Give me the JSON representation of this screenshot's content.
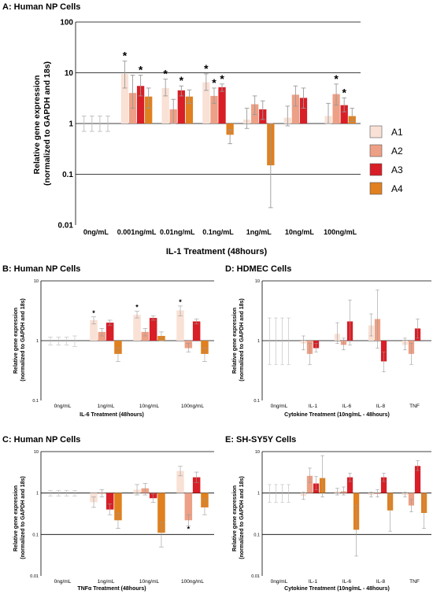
{
  "legend": [
    {
      "name": "A1",
      "color": "#f9e1d6"
    },
    {
      "name": "A2",
      "color": "#eda085"
    },
    {
      "name": "A3",
      "color": "#d81e26"
    },
    {
      "name": "A4",
      "color": "#e0801f"
    }
  ],
  "panels": {
    "A": {
      "title": "A: Human NP Cells",
      "xlabel": "IL-1 Treatment (48hours)",
      "ylabel_line1": "Relative gene expression",
      "ylabel_line2": "(normalized to GAPDH and 18s)"
    },
    "B": {
      "title": "B: Human NP Cells",
      "xlabel": "IL-6 Treatment (48hours)",
      "ylabel_line1": "Relative gene expression",
      "ylabel_line2": "(normalized to GAPDH and 18s)"
    },
    "C": {
      "title": "C: Human NP Cells",
      "xlabel": "TNFα Treatment (48hours)",
      "ylabel_line1": "Relative gene expression",
      "ylabel_line2": "(normalized to GAPDH and 18s)"
    },
    "D": {
      "title": "D: HDMEC Cells",
      "xlabel": "Cytokine Treatment (10ng/mL - 48hours)",
      "ylabel_line1": "Relative gene expression",
      "ylabel_line2": "(normalized to GAPDH and 18s)"
    },
    "E": {
      "title": "E: SH-SY5Y Cells",
      "xlabel": "Cytokine Treatment (10ng/mL - 48hours)",
      "ylabel_line1": "Relative gene expression",
      "ylabel_line2": "(normalized to GAPDH and 18s)"
    }
  },
  "chart_data": [
    {
      "id": "A",
      "type": "bar",
      "scale": "log",
      "ylim": [
        0.01,
        100
      ],
      "yticks": [
        "0.01",
        "0.1",
        "1",
        "10",
        "100"
      ],
      "categories": [
        "0ng/mL",
        "0.001ng/mL",
        "0.01ng/mL",
        "0.1ng/mL",
        "1ng/mL",
        "10ng/mL",
        "100ng/mL"
      ],
      "series": [
        {
          "name": "A1",
          "values": [
            1.0,
            9.5,
            5.0,
            6.5,
            1.2,
            1.3,
            1.4
          ],
          "err_low": [
            0.7,
            5.0,
            3.5,
            4.5,
            0.8,
            0.9,
            1.0
          ],
          "err_high": [
            1.4,
            17.0,
            7.5,
            9.5,
            2.0,
            2.2,
            2.5
          ],
          "sig": [
            false,
            true,
            true,
            true,
            false,
            false,
            false
          ]
        },
        {
          "name": "A2",
          "values": [
            1.0,
            4.0,
            1.9,
            3.5,
            2.4,
            3.7,
            3.8
          ],
          "err_low": [
            0.7,
            2.0,
            1.0,
            2.5,
            1.5,
            2.2,
            2.3
          ],
          "err_high": [
            1.4,
            9.0,
            3.0,
            5.0,
            3.5,
            5.5,
            6.0
          ],
          "sig": [
            false,
            false,
            false,
            true,
            false,
            false,
            true
          ]
        },
        {
          "name": "A3",
          "values": [
            1.0,
            5.5,
            4.5,
            5.2,
            1.9,
            3.2,
            2.3
          ],
          "err_low": [
            0.7,
            3.5,
            3.5,
            4.3,
            1.2,
            2.0,
            1.7
          ],
          "err_high": [
            1.4,
            9.0,
            5.5,
            6.0,
            2.8,
            5.0,
            3.2
          ],
          "sig": [
            false,
            true,
            true,
            true,
            false,
            false,
            true
          ]
        },
        {
          "name": "A4",
          "values": [
            1.0,
            3.4,
            3.4,
            0.6,
            0.15,
            null,
            1.4
          ],
          "err_low": [
            0.7,
            2.0,
            2.5,
            0.4,
            0.022,
            null,
            1.1
          ],
          "err_high": [
            1.4,
            5.0,
            4.6,
            0.75,
            1.0,
            null,
            2.0
          ],
          "sig": [
            false,
            false,
            false,
            false,
            false,
            false,
            false
          ]
        }
      ]
    },
    {
      "id": "B",
      "type": "bar",
      "scale": "log",
      "ylim": [
        0.1,
        10
      ],
      "yticks": [
        "0.1",
        "1",
        "10"
      ],
      "categories": [
        "0ng/mL",
        "1ng/mL",
        "10ng/mL",
        "100ng/mL"
      ],
      "series": [
        {
          "name": "A1",
          "values": [
            1.0,
            2.2,
            2.7,
            3.2
          ],
          "err_low": [
            0.85,
            1.9,
            2.4,
            2.6
          ],
          "err_high": [
            1.15,
            2.5,
            3.1,
            3.8
          ],
          "sig": [
            false,
            true,
            true,
            true
          ]
        },
        {
          "name": "A2",
          "values": [
            1.0,
            1.4,
            1.4,
            0.75
          ],
          "err_low": [
            0.85,
            1.2,
            1.2,
            0.65
          ],
          "err_high": [
            1.15,
            1.6,
            1.6,
            0.9
          ],
          "sig": [
            false,
            false,
            false,
            false
          ]
        },
        {
          "name": "A3",
          "values": [
            1.0,
            2.0,
            2.4,
            2.1
          ],
          "err_low": [
            0.85,
            1.8,
            2.2,
            1.9
          ],
          "err_high": [
            1.15,
            2.2,
            2.6,
            2.3
          ],
          "sig": [
            false,
            false,
            false,
            false
          ]
        },
        {
          "name": "A4",
          "values": [
            1.0,
            0.6,
            1.2,
            0.6
          ],
          "err_low": [
            0.8,
            0.45,
            1.0,
            0.45
          ],
          "err_high": [
            1.2,
            0.75,
            1.4,
            0.75
          ],
          "sig": [
            false,
            false,
            false,
            false
          ]
        }
      ]
    },
    {
      "id": "C",
      "type": "bar",
      "scale": "log",
      "ylim": [
        0.01,
        10
      ],
      "yticks": [
        "0.01",
        "0.1",
        "1",
        "10"
      ],
      "categories": [
        "0ng/mL",
        "1ng/mL",
        "10ng/mL",
        "100ng/mL"
      ],
      "series": [
        {
          "name": "A1",
          "values": [
            1.0,
            0.6,
            1.2,
            3.4
          ],
          "err_low": [
            0.85,
            0.45,
            0.9,
            2.6
          ],
          "err_high": [
            1.15,
            0.8,
            1.6,
            4.4
          ],
          "sig": [
            false,
            false,
            false,
            false
          ]
        },
        {
          "name": "A2",
          "values": [
            1.0,
            1.0,
            1.3,
            0.22
          ],
          "err_low": [
            0.85,
            0.8,
            0.9,
            0.16
          ],
          "err_high": [
            1.15,
            1.2,
            1.7,
            0.3
          ],
          "sig": [
            false,
            false,
            false,
            true
          ]
        },
        {
          "name": "A3",
          "values": [
            1.0,
            0.4,
            0.75,
            2.4
          ],
          "err_low": [
            0.85,
            0.3,
            0.6,
            1.8
          ],
          "err_high": [
            1.15,
            0.55,
            0.95,
            3.2
          ],
          "sig": [
            false,
            false,
            false,
            false
          ]
        },
        {
          "name": "A4",
          "values": [
            1.0,
            0.22,
            0.11,
            0.45
          ],
          "err_low": [
            0.85,
            0.14,
            0.05,
            0.3
          ],
          "err_high": [
            1.15,
            0.32,
            0.2,
            0.7
          ],
          "sig": [
            false,
            false,
            false,
            false
          ]
        }
      ]
    },
    {
      "id": "D",
      "type": "bar",
      "scale": "log",
      "ylim": [
        0.1,
        10
      ],
      "yticks": [
        "0.1",
        "1",
        "10"
      ],
      "categories": [
        "0ng/mL",
        "IL-1",
        "IL-6",
        "IL-8",
        "TNF"
      ],
      "series": [
        {
          "name": "A1",
          "values": [
            1.0,
            0.9,
            1.3,
            1.8,
            0.85
          ],
          "err_low": [
            0.4,
            0.7,
            0.9,
            1.2,
            0.7
          ],
          "err_high": [
            2.4,
            1.2,
            2.0,
            2.8,
            1.1
          ],
          "sig": [
            false,
            false,
            false,
            false,
            false
          ]
        },
        {
          "name": "A2",
          "values": [
            1.0,
            0.6,
            0.85,
            2.3,
            0.6
          ],
          "err_low": [
            0.4,
            0.4,
            0.7,
            0.75,
            0.4
          ],
          "err_high": [
            2.4,
            0.9,
            1.1,
            7.0,
            0.9
          ],
          "sig": [
            false,
            false,
            false,
            false,
            false
          ]
        },
        {
          "name": "A3",
          "values": [
            1.0,
            0.75,
            2.1,
            0.45,
            1.6
          ],
          "err_low": [
            0.4,
            0.65,
            0.85,
            0.3,
            1.1
          ],
          "err_high": [
            2.4,
            0.9,
            4.8,
            0.65,
            2.3
          ],
          "sig": [
            false,
            false,
            false,
            false,
            false
          ]
        },
        {
          "name": "A4",
          "values": [
            1.0,
            null,
            null,
            null,
            null
          ],
          "err_low": [
            0.4,
            null,
            null,
            null,
            null
          ],
          "err_high": [
            2.4,
            null,
            null,
            null,
            null
          ],
          "sig": [
            false,
            false,
            false,
            false,
            false
          ]
        }
      ]
    },
    {
      "id": "E",
      "type": "bar",
      "scale": "log",
      "ylim": [
        0.01,
        10
      ],
      "yticks": [
        "0.01",
        "0.1",
        "1",
        "10"
      ],
      "categories": [
        "0ng/mL",
        "IL-1",
        "IL-6",
        "IL-8",
        "TNF"
      ],
      "series": [
        {
          "name": "A1",
          "values": [
            1.0,
            0.85,
            1.1,
            0.9,
            0.9
          ],
          "err_low": [
            0.6,
            0.7,
            0.9,
            0.8,
            0.8
          ],
          "err_high": [
            1.6,
            1.05,
            1.3,
            1.05,
            1.05
          ],
          "sig": [
            false,
            false,
            false,
            false,
            false
          ]
        },
        {
          "name": "A2",
          "values": [
            1.0,
            2.6,
            1.1,
            0.95,
            0.5
          ],
          "err_low": [
            0.6,
            1.8,
            0.9,
            0.8,
            0.35
          ],
          "err_high": [
            1.6,
            4.0,
            1.4,
            1.2,
            0.7
          ],
          "sig": [
            false,
            false,
            false,
            false,
            false
          ]
        },
        {
          "name": "A3",
          "values": [
            1.0,
            1.7,
            2.4,
            2.4,
            4.5
          ],
          "err_low": [
            0.6,
            1.2,
            1.9,
            1.9,
            3.5
          ],
          "err_high": [
            1.6,
            2.5,
            3.0,
            3.0,
            6.0
          ],
          "sig": [
            false,
            false,
            false,
            false,
            false
          ]
        },
        {
          "name": "A4",
          "values": [
            1.0,
            2.3,
            0.13,
            0.38,
            0.33
          ],
          "err_low": [
            0.6,
            0.8,
            0.03,
            0.12,
            0.14
          ],
          "err_high": [
            1.6,
            8.0,
            0.5,
            0.9,
            0.9
          ],
          "sig": [
            false,
            false,
            false,
            false,
            false
          ]
        }
      ]
    }
  ]
}
